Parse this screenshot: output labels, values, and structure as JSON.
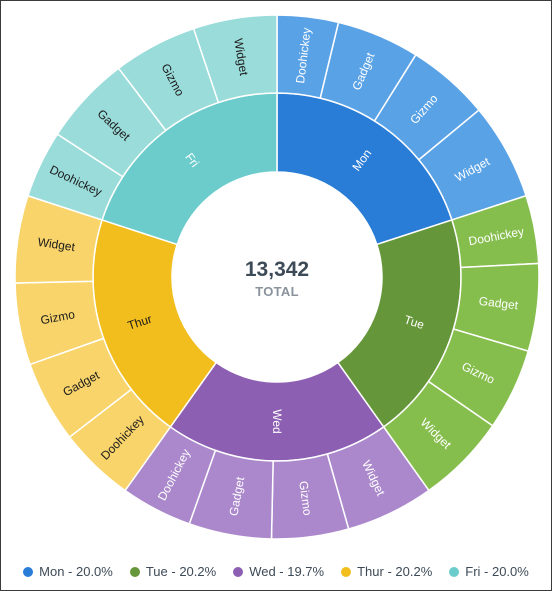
{
  "chart_data": {
    "type": "sunburst",
    "total": {
      "value": "13,342",
      "label": "TOTAL"
    },
    "days": [
      {
        "name": "Mon",
        "legend": "Mon - 20.0%",
        "percent": 20.0,
        "color": "#2a7dd6",
        "child_color": "#5aa2e6"
      },
      {
        "name": "Tue",
        "legend": "Tue - 20.2%",
        "percent": 20.2,
        "color": "#66963a",
        "child_color": "#86be4e"
      },
      {
        "name": "Wed",
        "legend": "Wed - 19.7%",
        "percent": 19.7,
        "color": "#8c5fb2",
        "child_color": "#ab88cc"
      },
      {
        "name": "Thur",
        "legend": "Thur - 20.2%",
        "percent": 20.2,
        "color": "#f2be1e",
        "child_color": "#f8d46a"
      },
      {
        "name": "Fri",
        "legend": "Fri - 20.0%",
        "percent": 20.0,
        "color": "#6ccccc",
        "child_color": "#9adcda"
      }
    ],
    "products": [
      "Doohickey",
      "Gadget",
      "Gizmo",
      "Widget"
    ],
    "segments": [
      {
        "day": "Mon",
        "product": "Doohickey",
        "share": 0.189
      },
      {
        "day": "Mon",
        "product": "Gadget",
        "share": 0.256
      },
      {
        "day": "Mon",
        "product": "Gizmo",
        "share": 0.256
      },
      {
        "day": "Mon",
        "product": "Widget",
        "share": 0.299
      },
      {
        "day": "Tue",
        "product": "Doohickey",
        "share": 0.208
      },
      {
        "day": "Tue",
        "product": "Gadget",
        "share": 0.267
      },
      {
        "day": "Tue",
        "product": "Gizmo",
        "share": 0.25
      },
      {
        "day": "Tue",
        "product": "Widget",
        "share": 0.275
      },
      {
        "day": "Wed",
        "product": "Widget",
        "share": 0.276
      },
      {
        "day": "Wed",
        "product": "Gizmo",
        "share": 0.241
      },
      {
        "day": "Wed",
        "product": "Gadget",
        "share": 0.259
      },
      {
        "day": "Wed",
        "product": "Doohickey",
        "share": 0.224
      },
      {
        "day": "Thur",
        "product": "Doohickey",
        "share": 0.233
      },
      {
        "day": "Thur",
        "product": "Gadget",
        "share": 0.25
      },
      {
        "day": "Thur",
        "product": "Gizmo",
        "share": 0.25
      },
      {
        "day": "Thur",
        "product": "Widget",
        "share": 0.267
      },
      {
        "day": "Fri",
        "product": "Doohickey",
        "share": 0.208
      },
      {
        "day": "Fri",
        "product": "Gadget",
        "share": 0.275
      },
      {
        "day": "Fri",
        "product": "Gizmo",
        "share": 0.259
      },
      {
        "day": "Fri",
        "product": "Widget",
        "share": 0.258
      }
    ]
  }
}
